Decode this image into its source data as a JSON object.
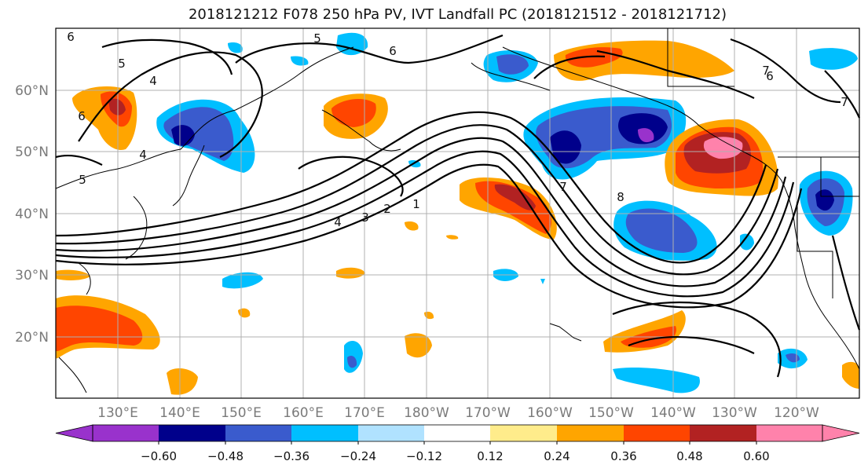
{
  "title": "2018121212 F078 250 hPa PV, IVT Landfall PC (2018121512 - 2018121712)",
  "lat_labels": [
    "60°N",
    "50°N",
    "40°N",
    "30°N",
    "20°N"
  ],
  "lon_labels": [
    "130°E",
    "140°E",
    "150°E",
    "160°E",
    "170°E",
    "180°W",
    "170°W",
    "160°W",
    "150°W",
    "140°W",
    "130°W",
    "120°W"
  ],
  "contour_labels": [
    "6",
    "5",
    "4",
    "4",
    "5",
    "6",
    "7",
    "1",
    "2",
    "3",
    "4",
    "5",
    "6",
    "7",
    "8",
    "6",
    "7"
  ],
  "colorbar": {
    "colors": [
      "#9932cc",
      "#00008b",
      "#3a5bcd",
      "#00bfff",
      "#b0e2ff",
      "#ffffff",
      "#ffec8b",
      "#ffa500",
      "#ff4500",
      "#b22222",
      "#ff82ab"
    ],
    "ticks": [
      "−0.60",
      "−0.48",
      "−0.36",
      "−0.24",
      "−0.12",
      "0.12",
      "0.24",
      "0.36",
      "0.48",
      "0.60"
    ]
  }
}
